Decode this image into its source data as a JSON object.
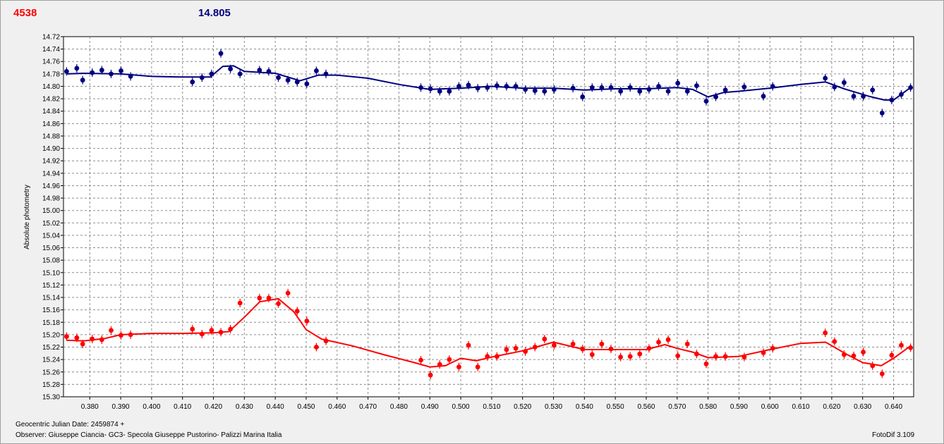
{
  "header": {
    "left_value": "4538",
    "right_value": "14.805",
    "left_color": "#ff0000",
    "right_color": "#000080"
  },
  "footer": {
    "julian_date": "Geocentric Julian Date: 2459874 +",
    "observer": "Observer: Giuseppe Ciancia- GC3- Specola Giuseppe Pustorino- Palizzi Marina Italia",
    "software": "FotoDif 3.109"
  },
  "chart_data": {
    "type": "scatter",
    "ylabel": "Absolute photometry",
    "xlabel": "",
    "xlim": [
      0.3715,
      0.6465
    ],
    "ylim": [
      15.3,
      14.72
    ],
    "y_inverted": true,
    "grid": true,
    "x_ticks": [
      "0.380",
      "0.390",
      "0.400",
      "0.410",
      "0.420",
      "0.430",
      "0.440",
      "0.450",
      "0.460",
      "0.470",
      "0.480",
      "0.490",
      "0.500",
      "0.510",
      "0.520",
      "0.530",
      "0.540",
      "0.550",
      "0.560",
      "0.570",
      "0.580",
      "0.590",
      "0.600",
      "0.610",
      "0.620",
      "0.630",
      "0.640"
    ],
    "y_ticks": [
      "14.72",
      "14.74",
      "14.76",
      "14.78",
      "14.80",
      "14.82",
      "14.84",
      "14.86",
      "14.88",
      "14.90",
      "14.92",
      "14.94",
      "14.96",
      "14.98",
      "15.00",
      "15.02",
      "15.04",
      "15.06",
      "15.08",
      "15.10",
      "15.12",
      "15.14",
      "15.16",
      "15.18",
      "15.20",
      "15.22",
      "15.24",
      "15.26",
      "15.28",
      "15.30"
    ],
    "series": [
      {
        "color": "#000080",
        "x": [
          0.3725,
          0.3758,
          0.3777,
          0.3808,
          0.3839,
          0.3869,
          0.3901,
          0.3932,
          0.4132,
          0.4163,
          0.4194,
          0.4224,
          0.4255,
          0.4286,
          0.4349,
          0.4379,
          0.441,
          0.4441,
          0.4471,
          0.4502,
          0.4533,
          0.4564,
          0.4871,
          0.4902,
          0.4932,
          0.4963,
          0.4994,
          0.5025,
          0.5055,
          0.5086,
          0.5117,
          0.5148,
          0.5178,
          0.5209,
          0.524,
          0.5271,
          0.5302,
          0.5363,
          0.5394,
          0.5425,
          0.5456,
          0.5486,
          0.5517,
          0.5548,
          0.5579,
          0.5609,
          0.564,
          0.5671,
          0.5702,
          0.5733,
          0.5763,
          0.5794,
          0.5825,
          0.5856,
          0.5917,
          0.5979,
          0.6009,
          0.6179,
          0.6209,
          0.624,
          0.6271,
          0.6302,
          0.6332,
          0.6363,
          0.6394,
          0.6425,
          0.6455
        ],
        "y": [
          14.776,
          14.771,
          14.79,
          14.778,
          14.774,
          14.78,
          14.775,
          14.784,
          14.793,
          14.786,
          14.78,
          14.747,
          14.772,
          14.78,
          14.774,
          14.776,
          14.786,
          14.79,
          14.793,
          14.796,
          14.775,
          14.78,
          14.802,
          14.804,
          14.808,
          14.808,
          14.8,
          14.798,
          14.803,
          14.802,
          14.799,
          14.8,
          14.8,
          14.805,
          14.807,
          14.808,
          14.805,
          14.803,
          14.817,
          14.802,
          14.802,
          14.802,
          14.808,
          14.802,
          14.808,
          14.805,
          14.8,
          14.808,
          14.795,
          14.808,
          14.799,
          14.824,
          14.817,
          14.806,
          14.801,
          14.816,
          14.8,
          14.787,
          14.801,
          14.794,
          14.816,
          14.816,
          14.806,
          14.843,
          14.822,
          14.813,
          14.802
        ],
        "fit": [
          [
            0.3725,
            14.78
          ],
          [
            0.378,
            14.779
          ],
          [
            0.39,
            14.78
          ],
          [
            0.4,
            14.784
          ],
          [
            0.41,
            14.785
          ],
          [
            0.419,
            14.785
          ],
          [
            0.423,
            14.768
          ],
          [
            0.4265,
            14.767
          ],
          [
            0.43,
            14.776
          ],
          [
            0.44,
            14.779
          ],
          [
            0.448,
            14.791
          ],
          [
            0.454,
            14.782
          ],
          [
            0.46,
            14.782
          ],
          [
            0.47,
            14.787
          ],
          [
            0.48,
            14.797
          ],
          [
            0.49,
            14.805
          ],
          [
            0.5,
            14.803
          ],
          [
            0.51,
            14.8
          ],
          [
            0.52,
            14.803
          ],
          [
            0.53,
            14.803
          ],
          [
            0.54,
            14.806
          ],
          [
            0.55,
            14.804
          ],
          [
            0.56,
            14.804
          ],
          [
            0.57,
            14.802
          ],
          [
            0.575,
            14.805
          ],
          [
            0.58,
            14.817
          ],
          [
            0.585,
            14.81
          ],
          [
            0.59,
            14.808
          ],
          [
            0.6,
            14.803
          ],
          [
            0.61,
            14.797
          ],
          [
            0.618,
            14.793
          ],
          [
            0.624,
            14.804
          ],
          [
            0.632,
            14.816
          ],
          [
            0.637,
            14.822
          ],
          [
            0.64,
            14.822
          ],
          [
            0.6455,
            14.802
          ]
        ]
      },
      {
        "color": "#ff0000",
        "x": [
          0.3725,
          0.3758,
          0.3777,
          0.3808,
          0.3839,
          0.3869,
          0.3901,
          0.3932,
          0.4132,
          0.4163,
          0.4194,
          0.4224,
          0.4255,
          0.4286,
          0.4349,
          0.4379,
          0.441,
          0.4441,
          0.4471,
          0.4502,
          0.4533,
          0.4564,
          0.4871,
          0.4902,
          0.4932,
          0.4963,
          0.4994,
          0.5025,
          0.5055,
          0.5086,
          0.5117,
          0.5148,
          0.5178,
          0.5209,
          0.524,
          0.5271,
          0.5302,
          0.5363,
          0.5394,
          0.5425,
          0.5456,
          0.5486,
          0.5517,
          0.5548,
          0.5579,
          0.5609,
          0.564,
          0.5671,
          0.5702,
          0.5733,
          0.5763,
          0.5794,
          0.5825,
          0.5856,
          0.5917,
          0.5979,
          0.6009,
          0.6179,
          0.6209,
          0.624,
          0.6271,
          0.6302,
          0.6332,
          0.6363,
          0.6394,
          0.6425,
          0.6455
        ],
        "y": [
          15.203,
          15.205,
          15.215,
          15.207,
          15.208,
          15.193,
          15.201,
          15.2,
          15.191,
          15.199,
          15.193,
          15.196,
          15.191,
          15.149,
          15.141,
          15.141,
          15.15,
          15.133,
          15.162,
          15.178,
          15.22,
          15.21,
          15.241,
          15.265,
          15.248,
          15.24,
          15.252,
          15.217,
          15.252,
          15.235,
          15.235,
          15.224,
          15.222,
          15.227,
          15.22,
          15.207,
          15.217,
          15.215,
          15.223,
          15.232,
          15.215,
          15.223,
          15.236,
          15.235,
          15.231,
          15.222,
          15.212,
          15.208,
          15.234,
          15.215,
          15.231,
          15.247,
          15.235,
          15.235,
          15.236,
          15.229,
          15.222,
          15.197,
          15.211,
          15.232,
          15.234,
          15.228,
          15.25,
          15.263,
          15.233,
          15.217,
          15.221
        ],
        "fit": [
          [
            0.3725,
            15.209
          ],
          [
            0.378,
            15.21
          ],
          [
            0.385,
            15.206
          ],
          [
            0.39,
            15.2
          ],
          [
            0.4,
            15.198
          ],
          [
            0.41,
            15.198
          ],
          [
            0.42,
            15.197
          ],
          [
            0.425,
            15.195
          ],
          [
            0.43,
            15.172
          ],
          [
            0.435,
            15.147
          ],
          [
            0.441,
            15.142
          ],
          [
            0.446,
            15.163
          ],
          [
            0.45,
            15.192
          ],
          [
            0.455,
            15.207
          ],
          [
            0.465,
            15.218
          ],
          [
            0.475,
            15.232
          ],
          [
            0.485,
            15.245
          ],
          [
            0.49,
            15.252
          ],
          [
            0.495,
            15.25
          ],
          [
            0.5,
            15.238
          ],
          [
            0.505,
            15.242
          ],
          [
            0.51,
            15.236
          ],
          [
            0.52,
            15.226
          ],
          [
            0.53,
            15.212
          ],
          [
            0.54,
            15.224
          ],
          [
            0.55,
            15.224
          ],
          [
            0.56,
            15.224
          ],
          [
            0.566,
            15.216
          ],
          [
            0.57,
            15.222
          ],
          [
            0.575,
            15.228
          ],
          [
            0.58,
            15.237
          ],
          [
            0.59,
            15.235
          ],
          [
            0.6,
            15.224
          ],
          [
            0.61,
            15.214
          ],
          [
            0.618,
            15.212
          ],
          [
            0.625,
            15.232
          ],
          [
            0.63,
            15.245
          ],
          [
            0.636,
            15.25
          ],
          [
            0.64,
            15.238
          ],
          [
            0.6455,
            15.218
          ]
        ]
      }
    ]
  }
}
